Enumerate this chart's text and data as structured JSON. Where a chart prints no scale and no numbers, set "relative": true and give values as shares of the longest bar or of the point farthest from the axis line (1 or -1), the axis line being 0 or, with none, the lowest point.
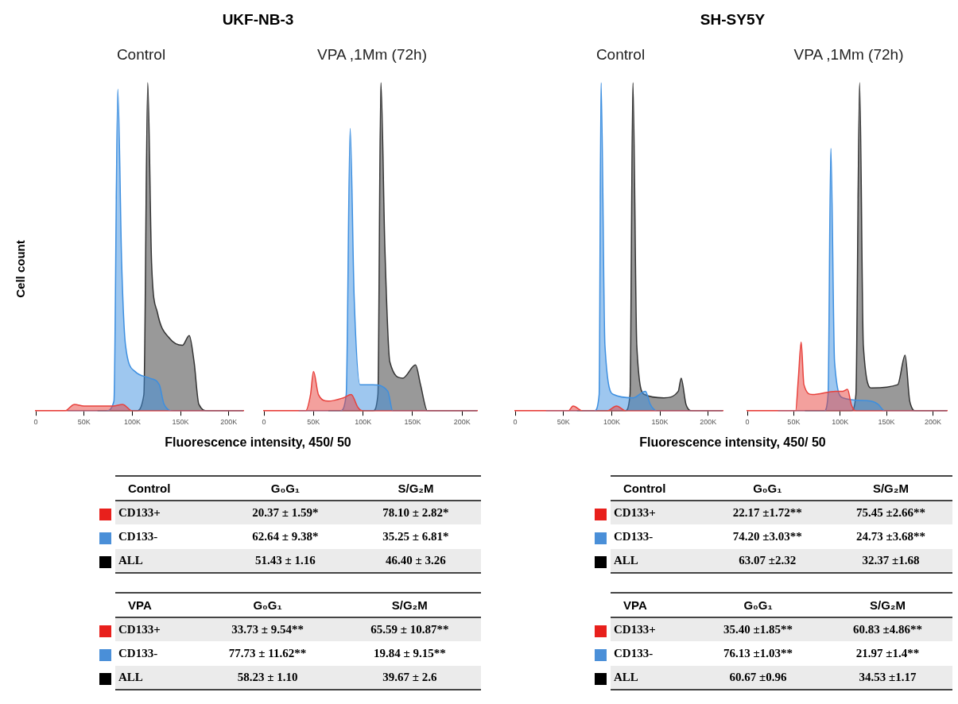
{
  "chart_data": [
    {
      "type": "area",
      "relative": true,
      "title": "UKF-NB-3",
      "subtitle": "Control",
      "ylabel": "Cell count",
      "xlabel": "Fluorescence intensity, 450/ 50",
      "xlim": [
        0,
        215
      ],
      "xticks": [
        {
          "value": 0,
          "label": "0"
        },
        {
          "value": 50,
          "label": "50K"
        },
        {
          "value": 100,
          "label": "100K"
        },
        {
          "value": 150,
          "label": "150K"
        },
        {
          "value": 200,
          "label": "200K"
        }
      ],
      "legend": false,
      "grid": false,
      "series": [
        {
          "color": "#e8413c",
          "x": [
            0,
            30,
            40,
            50,
            80,
            90,
            100,
            215
          ],
          "values": [
            0,
            0,
            0.02,
            0.015,
            0.015,
            0.02,
            0,
            0
          ]
        },
        {
          "color": "#3d8fe0",
          "x": [
            33,
            73,
            81,
            85,
            89,
            93,
            103,
            118,
            128,
            133,
            143,
            215
          ],
          "values": [
            0,
            0,
            0.03,
            0.98,
            0.45,
            0.2,
            0.12,
            0.1,
            0.08,
            0.02,
            0,
            0
          ]
        },
        {
          "color": "#333333",
          "x": [
            64,
            104,
            112,
            116,
            120,
            126,
            139,
            152,
            159,
            164,
            169,
            179,
            215
          ],
          "values": [
            0,
            0,
            0.05,
            1,
            0.45,
            0.3,
            0.22,
            0.2,
            0.23,
            0.15,
            0.02,
            0,
            0
          ]
        }
      ]
    },
    {
      "type": "area",
      "relative": true,
      "subtitle": "VPA ,1Mm (72h)",
      "xlim": [
        0,
        215
      ],
      "xticks": [
        {
          "value": 0,
          "label": "0"
        },
        {
          "value": 50,
          "label": "50K"
        },
        {
          "value": 100,
          "label": "100K"
        },
        {
          "value": 150,
          "label": "150K"
        },
        {
          "value": 200,
          "label": "200K"
        }
      ],
      "legend": false,
      "grid": false,
      "series": [
        {
          "color": "#e8413c",
          "x": [
            0,
            42,
            47,
            50,
            55,
            65,
            80,
            88,
            95,
            100,
            215
          ],
          "values": [
            0,
            0,
            0.05,
            0.12,
            0.05,
            0.03,
            0.04,
            0.05,
            0.01,
            0,
            0
          ]
        },
        {
          "color": "#3d8fe0",
          "x": [
            35,
            77,
            83,
            87,
            91,
            97,
            110,
            125,
            130,
            215
          ],
          "values": [
            0,
            0,
            0.05,
            0.86,
            0.35,
            0.08,
            0.08,
            0.06,
            0,
            0
          ]
        },
        {
          "color": "#333333",
          "x": [
            65,
            110,
            115,
            118,
            122,
            127,
            140,
            153,
            158,
            165,
            215
          ],
          "values": [
            0,
            0,
            0.05,
            1,
            0.5,
            0.15,
            0.1,
            0.14,
            0.08,
            0,
            0
          ]
        }
      ]
    },
    {
      "type": "area",
      "relative": true,
      "title": "SH-SY5Y",
      "subtitle": "Control",
      "xlabel": "Fluorescence intensity, 450/ 50",
      "xlim": [
        0,
        215
      ],
      "xticks": [
        {
          "value": 0,
          "label": "0"
        },
        {
          "value": 50,
          "label": "50K"
        },
        {
          "value": 100,
          "label": "100K"
        },
        {
          "value": 150,
          "label": "150K"
        },
        {
          "value": 200,
          "label": "200K"
        }
      ],
      "legend": false,
      "grid": false,
      "series": [
        {
          "color": "#e8413c",
          "x": [
            0,
            55,
            60,
            70,
            95,
            105,
            115,
            215
          ],
          "values": [
            0,
            0,
            0.015,
            0,
            0,
            0.015,
            0,
            0
          ]
        },
        {
          "color": "#3d8fe0",
          "x": [
            32,
            82,
            87,
            89,
            93,
            102,
            122,
            135,
            140,
            147,
            215
          ],
          "values": [
            0,
            0,
            0.05,
            1,
            0.2,
            0.05,
            0.04,
            0.06,
            0.02,
            0,
            0
          ]
        },
        {
          "color": "#333333",
          "x": [
            64,
            114,
            119,
            122,
            126,
            134,
            154,
            169,
            172,
            177,
            184,
            215
          ],
          "values": [
            0,
            0,
            0.05,
            1,
            0.2,
            0.05,
            0.04,
            0.06,
            0.1,
            0.02,
            0,
            0
          ]
        }
      ]
    },
    {
      "type": "area",
      "relative": true,
      "subtitle": "VPA ,1Mm (72h)",
      "xlim": [
        0,
        215
      ],
      "xticks": [
        {
          "value": 0,
          "label": "0"
        },
        {
          "value": 50,
          "label": "50K"
        },
        {
          "value": 100,
          "label": "100K"
        },
        {
          "value": 150,
          "label": "150K"
        },
        {
          "value": 200,
          "label": "200K"
        }
      ],
      "legend": false,
      "grid": false,
      "series": [
        {
          "color": "#e8413c",
          "x": [
            0,
            52,
            55,
            58,
            61,
            70,
            95,
            103,
            108,
            112,
            117,
            215
          ],
          "values": [
            0,
            0,
            0.1,
            0.21,
            0.08,
            0.05,
            0.06,
            0.06,
            0.066,
            0.02,
            0,
            0
          ]
        },
        {
          "color": "#3d8fe0",
          "x": [
            33,
            83,
            87,
            90,
            94,
            103,
            133,
            141,
            148,
            215
          ],
          "values": [
            0,
            0,
            0.05,
            0.8,
            0.15,
            0.04,
            0.03,
            0.02,
            0,
            0
          ]
        },
        {
          "color": "#333333",
          "x": [
            62,
            112,
            117,
            121,
            125,
            134,
            162,
            170,
            175,
            182,
            215
          ],
          "values": [
            0,
            0,
            0.05,
            1,
            0.2,
            0.07,
            0.08,
            0.17,
            0.03,
            0,
            0
          ]
        }
      ]
    },
    {
      "type": "other",
      "title": "Control",
      "categories": [
        "G₀G₁",
        "S/G₂M"
      ],
      "y_categories": [
        "CD133+",
        "CD133-",
        "ALL"
      ],
      "colors": [
        "#e8201c",
        "#4a8fd8",
        "#000000"
      ],
      "annotations": [
        "20.37 ± 1.59*",
        "78.10 ± 2.82*",
        "62.64 ± 9.38*",
        "35.25 ± 6.81*",
        "51.43 ± 1.16",
        "46.40 ± 3.26"
      ]
    },
    {
      "type": "other",
      "title": "VPA",
      "categories": [
        "G₀G₁",
        "S/G₂M"
      ],
      "y_categories": [
        "CD133+",
        "CD133-",
        "ALL"
      ],
      "colors": [
        "#e8201c",
        "#4a8fd8",
        "#000000"
      ],
      "annotations": [
        "33.73 ± 9.54**",
        "65.59 ± 10.87**",
        "77.73 ± 11.62**",
        "19.84 ± 9.15**",
        "58.23 ± 1.10",
        "39.67 ± 2.6"
      ]
    },
    {
      "type": "other",
      "title": "Control",
      "categories": [
        "G₀G₁",
        "S/G₂M"
      ],
      "y_categories": [
        "CD133+",
        "CD133-",
        "ALL"
      ],
      "colors": [
        "#e8201c",
        "#4a8fd8",
        "#000000"
      ],
      "annotations": [
        "22.17 ±1.72**",
        "75.45 ±2.66**",
        "74.20 ±3.03**",
        "24.73 ±3.68**",
        "63.07 ±2.32",
        "32.37 ±1.68"
      ]
    },
    {
      "type": "other",
      "title": "VPA",
      "categories": [
        "G₀G₁",
        "S/G₂M"
      ],
      "y_categories": [
        "CD133+",
        "CD133-",
        "ALL"
      ],
      "colors": [
        "#e8201c",
        "#4a8fd8",
        "#000000"
      ],
      "annotations": [
        "35.40 ±1.85**",
        "60.83 ±4.86**",
        "76.13 ±1.03**",
        "21.97 ±1.4**",
        "60.67 ±0.96",
        "34.53 ±1.17"
      ]
    }
  ]
}
